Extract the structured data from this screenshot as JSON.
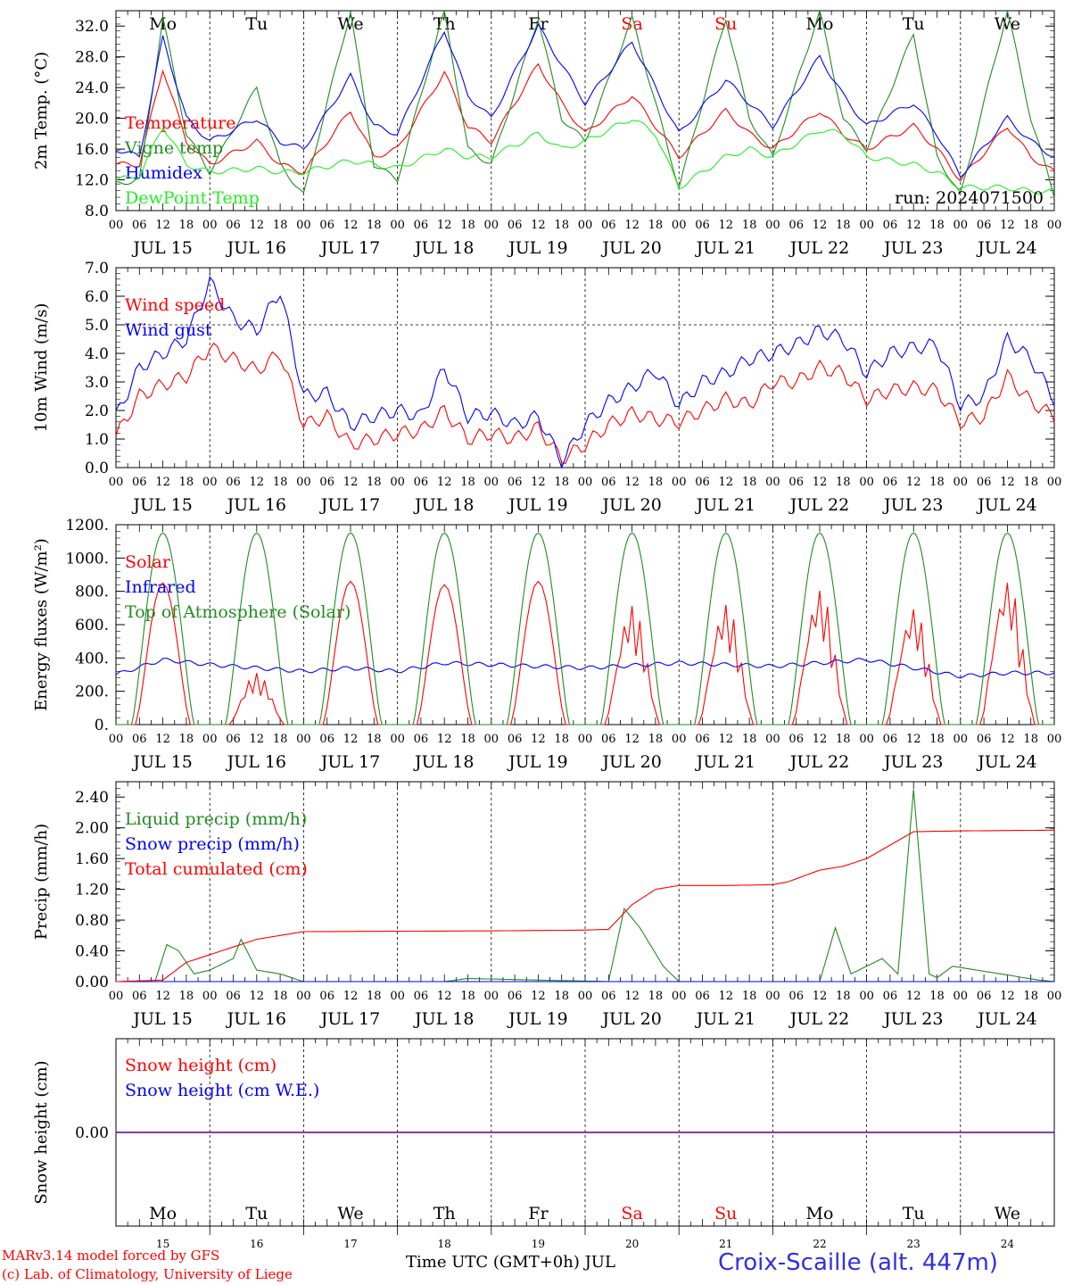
{
  "colors": {
    "red": "#ff0000",
    "green": "#228b22",
    "blue": "#0000ff",
    "lightgreen": "#22ee22",
    "purple": "#7020a0"
  },
  "day_labels": [
    {
      "label": "Mo",
      "weekend": false
    },
    {
      "label": "Tu",
      "weekend": false
    },
    {
      "label": "We",
      "weekend": false
    },
    {
      "label": "Th",
      "weekend": false
    },
    {
      "label": "Fr",
      "weekend": false
    },
    {
      "label": "Sa",
      "weekend": true
    },
    {
      "label": "Su",
      "weekend": true
    },
    {
      "label": "Mo",
      "weekend": false
    },
    {
      "label": "Tu",
      "weekend": false
    },
    {
      "label": "We",
      "weekend": false
    }
  ],
  "date_labels": [
    "JUL 15",
    "JUL 16",
    "JUL 17",
    "JUL 18",
    "JUL 19",
    "JUL 20",
    "JUL 21",
    "JUL 22",
    "JUL 23",
    "JUL 24"
  ],
  "day_numbers": [
    "15",
    "16",
    "17",
    "18",
    "19",
    "20",
    "21",
    "22",
    "23",
    "24"
  ],
  "hour_ticks": [
    "00",
    "06",
    "12",
    "18"
  ],
  "run_label": "run: 2024071500",
  "footer": {
    "model": "MARv3.14 model forced by GFS",
    "copyright": "(c) Lab. of Climatology, University of Liege",
    "time_axis": "Time UTC (GMT+0h) JUL",
    "station": "Croix-Scaille (alt. 447m)"
  },
  "chart_data": [
    {
      "id": "temperature",
      "type": "line",
      "ylabel": "2m Temp. (°C)",
      "ylim": [
        8,
        34
      ],
      "yticks": [
        "8.0",
        "12.0",
        "16.0",
        "20.0",
        "24.0",
        "28.0",
        "32.0"
      ],
      "x_unit": "hours since JUL 15 00 UTC",
      "series": [
        {
          "name": "Temperature",
          "color": "red",
          "x": [
            0,
            6,
            12,
            18,
            24,
            36,
            42,
            48,
            60,
            66,
            72,
            84,
            90,
            96,
            108,
            114,
            120,
            132,
            138,
            144,
            156,
            162,
            168,
            180,
            186,
            192,
            204,
            210,
            216,
            228,
            234,
            240
          ],
          "values": [
            14,
            14,
            26.5,
            17,
            14,
            17,
            14,
            13,
            21,
            15,
            16,
            26,
            19,
            17,
            27,
            22,
            18,
            23,
            19,
            15,
            21,
            18,
            16,
            21,
            18,
            16,
            19,
            16,
            12,
            19,
            15,
            13
          ]
        },
        {
          "name": "Vigne temp",
          "color": "green",
          "x": [
            0,
            6,
            12,
            18,
            24,
            36,
            42,
            48,
            60,
            66,
            72,
            84,
            90,
            96,
            108,
            114,
            120,
            132,
            138,
            144,
            156,
            162,
            168,
            180,
            186,
            192,
            204,
            210,
            216,
            228,
            234,
            240
          ],
          "values": [
            11.5,
            12,
            33,
            18,
            13,
            24,
            14,
            10,
            34,
            14,
            12,
            34,
            16,
            14,
            33,
            20,
            17,
            33,
            22,
            11,
            33,
            20,
            15,
            34,
            20,
            16,
            31,
            15,
            10,
            34,
            20,
            10
          ]
        },
        {
          "name": "Humidex",
          "color": "blue",
          "x": [
            0,
            6,
            12,
            18,
            24,
            36,
            42,
            48,
            60,
            66,
            72,
            84,
            90,
            96,
            108,
            114,
            120,
            132,
            138,
            144,
            156,
            162,
            168,
            180,
            186,
            192,
            204,
            210,
            216,
            228,
            234,
            240
          ],
          "values": [
            16,
            15,
            30.5,
            20,
            17,
            20,
            17,
            16,
            25.5,
            19,
            18,
            31.5,
            23,
            20,
            32,
            27,
            22,
            30,
            24,
            18,
            25,
            22,
            19,
            28,
            23,
            19,
            22,
            18,
            12.5,
            20,
            17,
            15
          ]
        },
        {
          "name": "DewPoint Temp",
          "color": "lightgreen",
          "x": [
            0,
            6,
            12,
            18,
            24,
            36,
            42,
            48,
            60,
            66,
            72,
            84,
            90,
            96,
            108,
            114,
            120,
            132,
            138,
            144,
            156,
            162,
            168,
            180,
            186,
            192,
            204,
            210,
            216,
            228,
            234,
            240
          ],
          "values": [
            12,
            12.5,
            19,
            14,
            13,
            13.5,
            13,
            13,
            14.5,
            14,
            13.5,
            16,
            15,
            15,
            18,
            16,
            17,
            20,
            18,
            11,
            15,
            16,
            15,
            18.5,
            18,
            15,
            14,
            13,
            11,
            11,
            10.5,
            10.5
          ]
        }
      ],
      "annotations": [
        "run: 2024071500"
      ]
    },
    {
      "id": "wind",
      "type": "line",
      "ylabel": "10m Wind (m/s)",
      "ylim": [
        0,
        7
      ],
      "yticks": [
        "0.0",
        "1.0",
        "2.0",
        "3.0",
        "4.0",
        "5.0",
        "6.0",
        "7.0"
      ],
      "reference_line": 5,
      "series": [
        {
          "name": "Wind speed",
          "color": "red",
          "x": [
            0,
            6,
            12,
            18,
            24,
            30,
            36,
            42,
            48,
            54,
            60,
            66,
            72,
            78,
            84,
            90,
            96,
            102,
            108,
            114,
            120,
            126,
            132,
            138,
            144,
            150,
            156,
            162,
            168,
            174,
            180,
            186,
            192,
            198,
            204,
            210,
            216,
            222,
            228,
            234,
            240
          ],
          "values": [
            1.1,
            2.5,
            2.9,
            3.2,
            4.2,
            3.8,
            3.4,
            4,
            1.5,
            1.8,
            0.8,
            1,
            1.2,
            1.3,
            2,
            1,
            1.2,
            1,
            1.4,
            0.3,
            0.8,
            1.5,
            1.9,
            1.7,
            1.6,
            2,
            2.4,
            2.2,
            3,
            3,
            3.5,
            3.3,
            2.4,
            2.7,
            2.8,
            2.7,
            1.6,
            1.8,
            3.2,
            2.3,
            1.8
          ]
        },
        {
          "name": "Wind gust",
          "color": "blue",
          "x": [
            0,
            6,
            12,
            18,
            24,
            30,
            36,
            42,
            48,
            54,
            60,
            66,
            72,
            78,
            84,
            90,
            96,
            102,
            108,
            114,
            120,
            126,
            132,
            138,
            144,
            150,
            156,
            162,
            168,
            174,
            180,
            186,
            192,
            198,
            204,
            210,
            216,
            222,
            228,
            234,
            240
          ],
          "values": [
            1.8,
            3.5,
            4,
            4.5,
            6.5,
            5.2,
            4.8,
            6.2,
            2.5,
            2.6,
            1.5,
            1.8,
            2,
            1.8,
            3.5,
            1.8,
            1.9,
            1.5,
            1.8,
            0.2,
            1.5,
            2.3,
            2.8,
            3.4,
            2.2,
            3,
            3.3,
            3.8,
            4,
            4.3,
            4.8,
            4.5,
            3.3,
            4,
            4.2,
            4.3,
            2.2,
            2.5,
            4.5,
            3.8,
            2.4
          ]
        }
      ]
    },
    {
      "id": "energy",
      "type": "line",
      "ylabel": "Energy fluxes (W/m²)",
      "ylim": [
        0,
        1200
      ],
      "yticks": [
        "0.",
        "200.",
        "400.",
        "600.",
        "800.",
        "1000.",
        "1200."
      ],
      "series": [
        {
          "name": "Solar",
          "color": "red",
          "peaks": [
            850,
            310,
            860,
            840,
            860,
            720,
            730,
            820,
            710,
            880
          ]
        },
        {
          "name": "Infrared",
          "color": "blue",
          "x": [
            0,
            12,
            24,
            48,
            60,
            72,
            84,
            96,
            120,
            144,
            168,
            192,
            216,
            228,
            240
          ],
          "values": [
            300,
            390,
            360,
            320,
            340,
            320,
            370,
            360,
            340,
            370,
            350,
            390,
            290,
            310,
            310
          ]
        },
        {
          "name": "Top of Atmosphere (Solar)",
          "color": "green",
          "peak": 1150
        }
      ]
    },
    {
      "id": "precip",
      "type": "line",
      "ylabel": "Precip (mm/h)",
      "ylim": [
        0,
        2.6
      ],
      "yticks": [
        "0.00",
        "0.40",
        "0.80",
        "1.20",
        "1.60",
        "2.00",
        "2.40"
      ],
      "series": [
        {
          "name": "Liquid precip (mm/h)",
          "color": "green",
          "x": [
            0,
            10,
            13,
            16,
            20,
            24,
            30,
            32,
            36,
            42,
            48,
            84,
            90,
            126,
            130,
            134,
            140,
            144,
            180,
            184,
            188,
            196,
            200,
            204,
            208,
            210,
            214,
            236,
            240
          ],
          "values": [
            0,
            0,
            0.48,
            0.4,
            0.1,
            0.15,
            0.3,
            0.55,
            0.15,
            0.1,
            0,
            0,
            0.04,
            0,
            0.95,
            0.7,
            0.2,
            0,
            0,
            0.7,
            0.1,
            0.3,
            0.1,
            2.5,
            0.1,
            0.05,
            0.2,
            0.02,
            0
          ]
        },
        {
          "name": "Snow precip (mm/h)",
          "color": "blue",
          "x": [
            0,
            240
          ],
          "values": [
            0,
            0
          ]
        },
        {
          "name": "Total cumulated (cm)",
          "color": "red",
          "x": [
            0,
            12,
            18,
            24,
            36,
            48,
            96,
            120,
            126,
            132,
            138,
            144,
            156,
            168,
            172,
            180,
            186,
            192,
            204,
            216,
            240
          ],
          "values": [
            0,
            0.02,
            0.25,
            0.35,
            0.55,
            0.65,
            0.66,
            0.67,
            0.68,
            1,
            1.2,
            1.25,
            1.25,
            1.26,
            1.3,
            1.45,
            1.5,
            1.6,
            1.95,
            1.96,
            1.97
          ]
        }
      ]
    },
    {
      "id": "snow",
      "type": "line",
      "ylabel": "Snow height (cm)",
      "yticks": [
        "0.00"
      ],
      "series": [
        {
          "name": "Snow height (cm)",
          "color": "red",
          "x": [
            0,
            240
          ],
          "values": [
            0,
            0
          ]
        },
        {
          "name": "Snow height (cm W.E.)",
          "color": "blue",
          "x": [
            0,
            240
          ],
          "values": [
            0,
            0
          ]
        }
      ]
    }
  ]
}
